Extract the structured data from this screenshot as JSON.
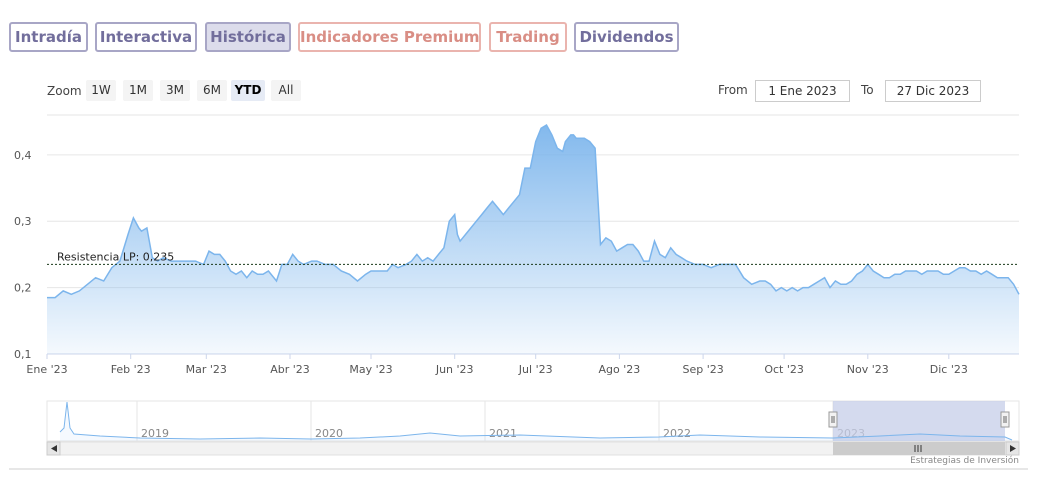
{
  "tabs": [
    {
      "label": "Intradía",
      "active": false,
      "premium": false
    },
    {
      "label": "Interactiva",
      "active": false,
      "premium": false
    },
    {
      "label": "Histórica",
      "active": true,
      "premium": false
    },
    {
      "label": "Indicadores Premium",
      "active": false,
      "premium": true
    },
    {
      "label": "Trading",
      "active": false,
      "premium": true
    },
    {
      "label": "Dividendos",
      "active": false,
      "premium": false
    }
  ],
  "zoom": {
    "label": "Zoom",
    "buttons": [
      "1W",
      "1M",
      "3M",
      "6M",
      "YTD",
      "All"
    ],
    "selected": "YTD"
  },
  "range": {
    "from_label": "From",
    "from_value": "1 Ene 2023",
    "to_label": "To",
    "to_value": "27 Dic 2023"
  },
  "credits": "Estrategias de Inversión",
  "colors": {
    "line": "#7cb5ec",
    "fill_top": "#7cb5ec",
    "navigator_mask": "#c5cee8",
    "tab_border": "#a8a6c6",
    "premium": "#d98e85"
  },
  "chart_data": {
    "type": "area",
    "ylim": [
      0.1,
      0.46
    ],
    "yticks": [
      {
        "value": 0.1,
        "label": "0,1"
      },
      {
        "value": 0.2,
        "label": "0,2"
      },
      {
        "value": 0.3,
        "label": "0,3"
      },
      {
        "value": 0.4,
        "label": "0,4"
      }
    ],
    "xlim": [
      0,
      360
    ],
    "xticks": [
      {
        "day": 0,
        "label": "Ene '23"
      },
      {
        "day": 31,
        "label": "Feb '23"
      },
      {
        "day": 59,
        "label": "Mar '23"
      },
      {
        "day": 90,
        "label": "Abr '23"
      },
      {
        "day": 120,
        "label": "May '23"
      },
      {
        "day": 151,
        "label": "Jun '23"
      },
      {
        "day": 181,
        "label": "Jul '23"
      },
      {
        "day": 212,
        "label": "Ago '23"
      },
      {
        "day": 243,
        "label": "Sep '23"
      },
      {
        "day": 273,
        "label": "Oct '23"
      },
      {
        "day": 304,
        "label": "Nov '23"
      },
      {
        "day": 334,
        "label": "Dic '23"
      }
    ],
    "plotline": {
      "value": 0.235,
      "label": "Resistencia LP: 0,235"
    },
    "series": [
      {
        "x": [
          0,
          3,
          6,
          9,
          12,
          15,
          18,
          21,
          24,
          27,
          30,
          32,
          34,
          35,
          37,
          39,
          41,
          43,
          46,
          49,
          52,
          55,
          58,
          60,
          62,
          64,
          66,
          68,
          70,
          72,
          74,
          76,
          78,
          80,
          82,
          85,
          87,
          89,
          91,
          93,
          95,
          98,
          100,
          103,
          106,
          109,
          112,
          115,
          118,
          120,
          122,
          124,
          126,
          128,
          130,
          133,
          135,
          137,
          139,
          141,
          143,
          145,
          147,
          149,
          151,
          152,
          153,
          154,
          155,
          157,
          159,
          161,
          163,
          165,
          167,
          169,
          171,
          173,
          175,
          177,
          179,
          181,
          183,
          185,
          187,
          189,
          191,
          192,
          193,
          194,
          195,
          196,
          197,
          199,
          201,
          203,
          205,
          207,
          209,
          211,
          213,
          215,
          217,
          219,
          221,
          223,
          225,
          227,
          229,
          231,
          233,
          235,
          237,
          240,
          243,
          246,
          249,
          252,
          255,
          258,
          261,
          264,
          266,
          268,
          270,
          272,
          274,
          276,
          278,
          280,
          282,
          284,
          286,
          288,
          290,
          292,
          294,
          296,
          298,
          300,
          302,
          304,
          306,
          308,
          310,
          312,
          314,
          316,
          318,
          320,
          322,
          324,
          326,
          328,
          330,
          332,
          334,
          336,
          338,
          340,
          342,
          344,
          346,
          348,
          350,
          352,
          354,
          356,
          358,
          360
        ],
        "y": [
          0.185,
          0.185,
          0.195,
          0.19,
          0.195,
          0.205,
          0.215,
          0.21,
          0.23,
          0.24,
          0.28,
          0.305,
          0.29,
          0.285,
          0.29,
          0.245,
          0.24,
          0.245,
          0.24,
          0.24,
          0.24,
          0.24,
          0.235,
          0.255,
          0.25,
          0.25,
          0.24,
          0.225,
          0.22,
          0.225,
          0.215,
          0.225,
          0.22,
          0.22,
          0.225,
          0.21,
          0.235,
          0.235,
          0.25,
          0.24,
          0.235,
          0.24,
          0.24,
          0.235,
          0.235,
          0.225,
          0.22,
          0.21,
          0.22,
          0.225,
          0.225,
          0.225,
          0.225,
          0.235,
          0.23,
          0.235,
          0.24,
          0.25,
          0.24,
          0.245,
          0.24,
          0.25,
          0.26,
          0.3,
          0.31,
          0.28,
          0.27,
          0.275,
          0.28,
          0.29,
          0.3,
          0.31,
          0.32,
          0.33,
          0.32,
          0.31,
          0.32,
          0.33,
          0.34,
          0.38,
          0.38,
          0.42,
          0.44,
          0.445,
          0.43,
          0.41,
          0.405,
          0.42,
          0.425,
          0.43,
          0.43,
          0.425,
          0.425,
          0.425,
          0.42,
          0.41,
          0.265,
          0.275,
          0.27,
          0.255,
          0.26,
          0.265,
          0.265,
          0.255,
          0.24,
          0.24,
          0.27,
          0.25,
          0.245,
          0.26,
          0.25,
          0.245,
          0.24,
          0.235,
          0.235,
          0.23,
          0.235,
          0.235,
          0.235,
          0.215,
          0.205,
          0.21,
          0.21,
          0.205,
          0.195,
          0.2,
          0.195,
          0.2,
          0.195,
          0.2,
          0.2,
          0.205,
          0.21,
          0.215,
          0.2,
          0.21,
          0.205,
          0.205,
          0.21,
          0.22,
          0.225,
          0.235,
          0.225,
          0.22,
          0.215,
          0.215,
          0.22,
          0.22,
          0.225,
          0.225,
          0.225,
          0.22,
          0.225,
          0.225,
          0.225,
          0.22,
          0.22,
          0.225,
          0.23,
          0.23,
          0.225,
          0.225,
          0.22,
          0.225,
          0.22,
          0.215,
          0.215,
          0.215,
          0.205,
          0.19
        ]
      }
    ]
  },
  "navigator": {
    "years": [
      "2019",
      "2020",
      "2021",
      "2022",
      "2023"
    ]
  }
}
